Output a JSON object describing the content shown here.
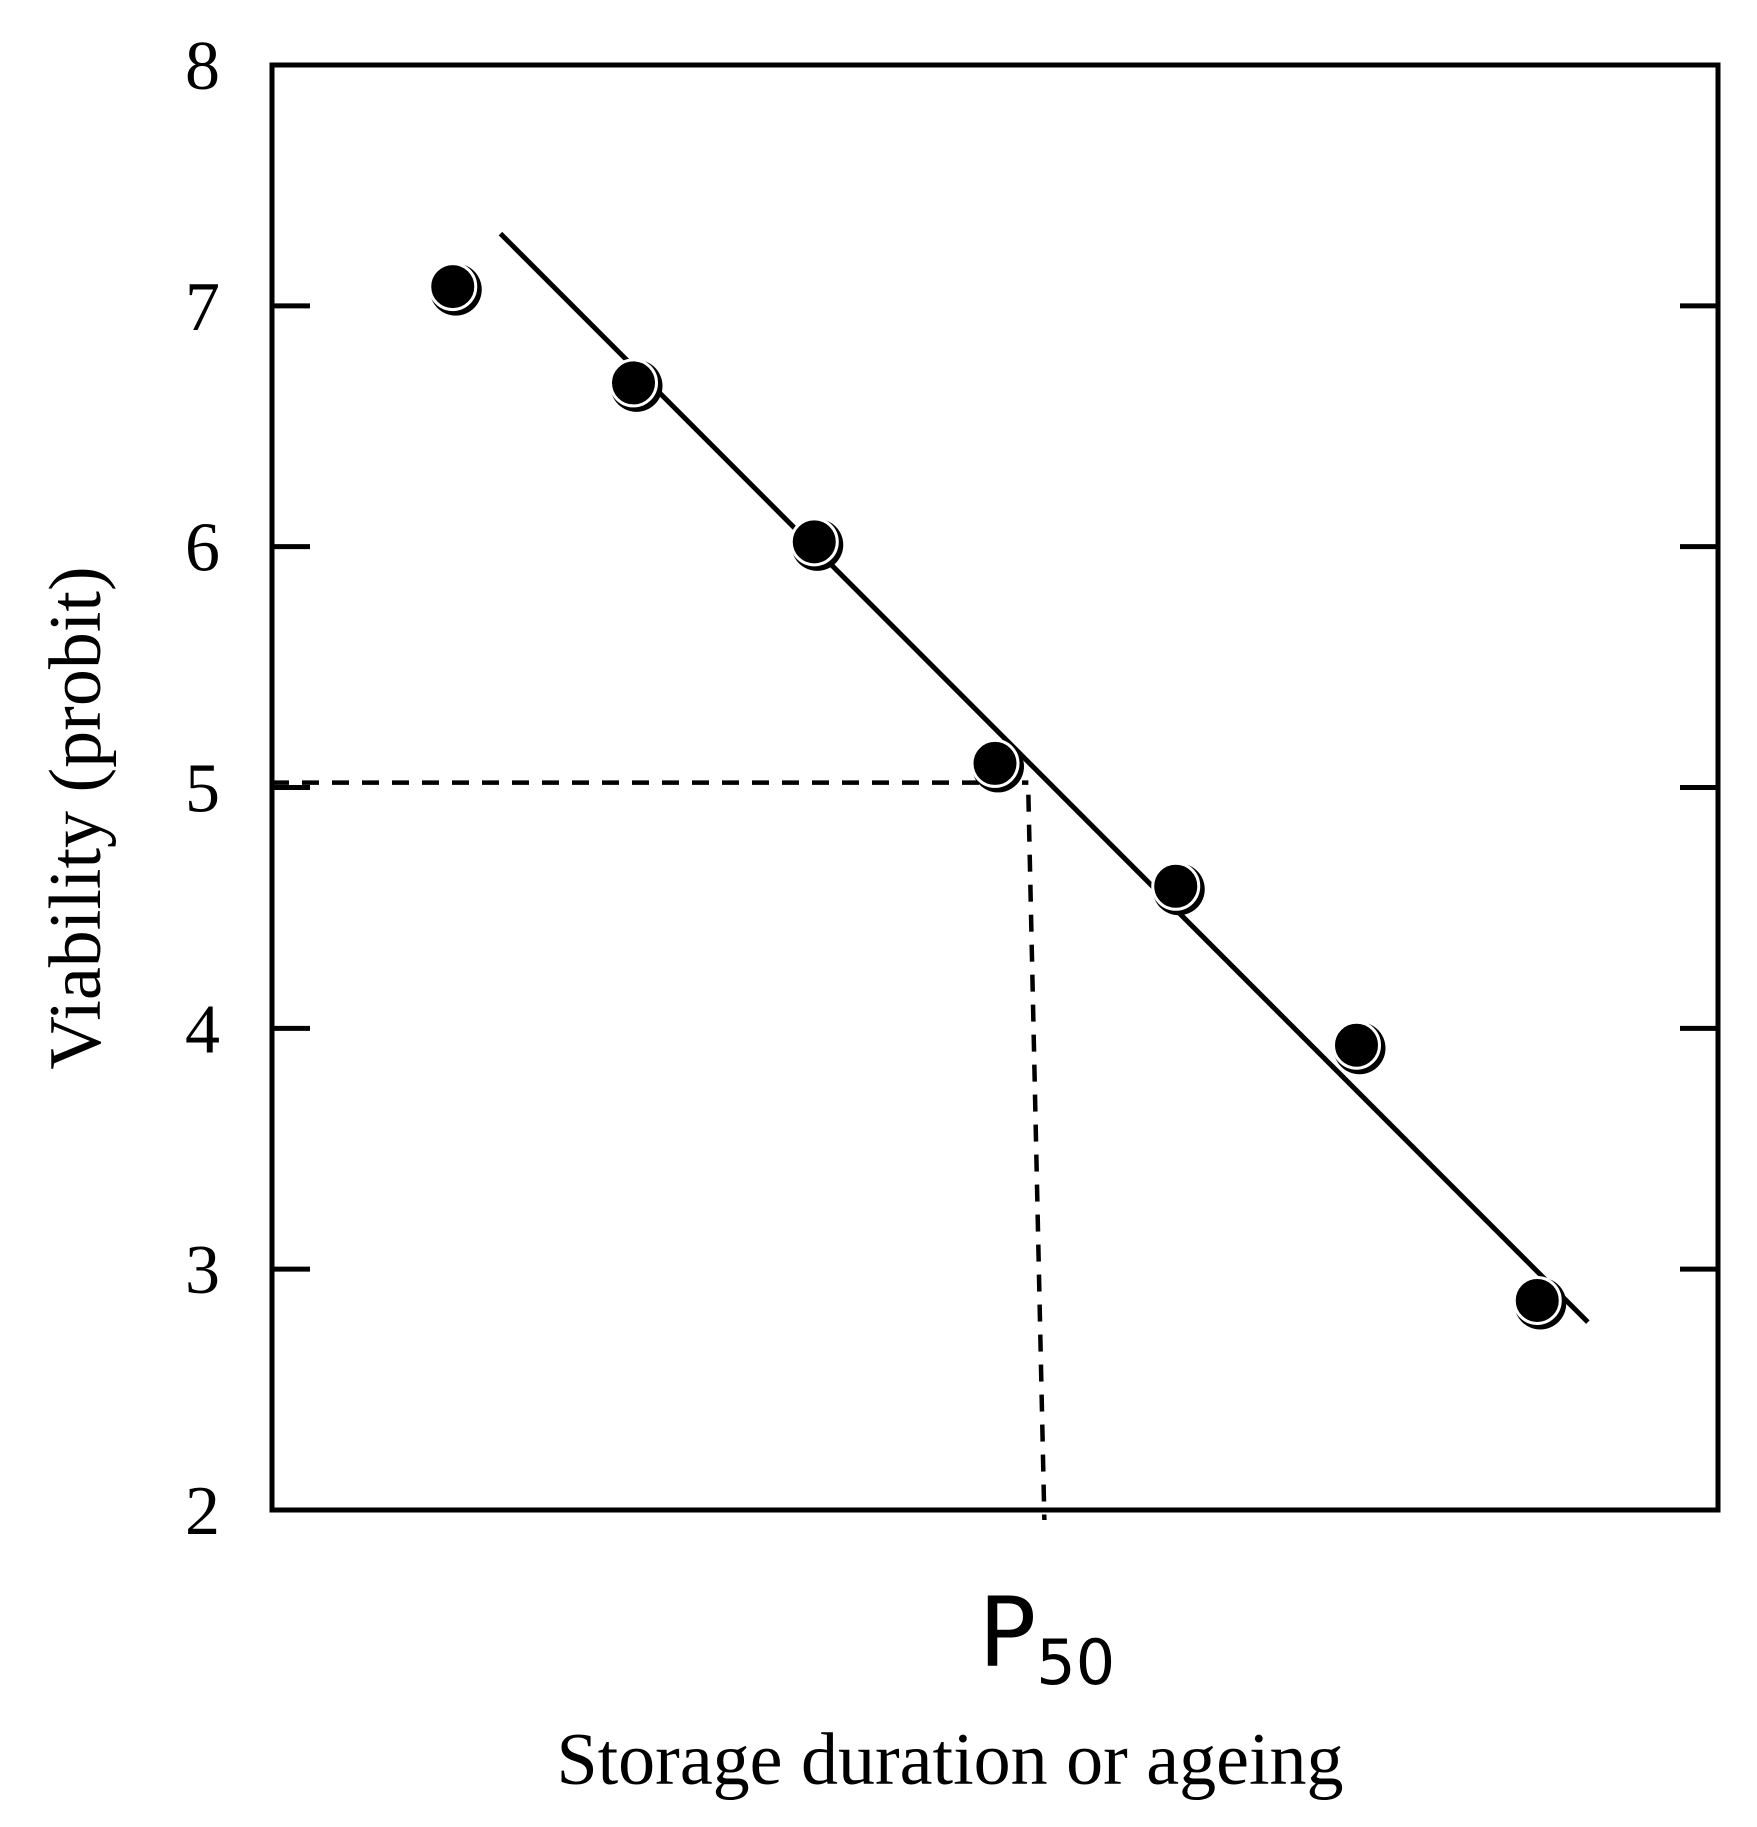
{
  "chart_data": {
    "type": "scatter",
    "title": "",
    "xlabel": "Storage duration or ageing",
    "ylabel": "Viability (probit)",
    "x_annotation": {
      "main": "P",
      "sub": "50",
      "x": 5.3
    },
    "xlim": [
      0,
      10
    ],
    "ylim": [
      2,
      8
    ],
    "yticks": [
      "2",
      "3",
      "4",
      "5",
      "6",
      "7",
      "8"
    ],
    "grid": false,
    "legend": "none",
    "points": [
      {
        "x": 1.25,
        "y": 7.08
      },
      {
        "x": 2.5,
        "y": 6.68
      },
      {
        "x": 3.75,
        "y": 6.02
      },
      {
        "x": 5.0,
        "y": 5.1
      },
      {
        "x": 6.25,
        "y": 4.59
      },
      {
        "x": 7.5,
        "y": 3.93
      },
      {
        "x": 8.75,
        "y": 2.87
      }
    ],
    "fit_line": [
      {
        "x": 1.58,
        "y": 7.3
      },
      {
        "x": 9.1,
        "y": 2.78
      }
    ],
    "reference_lines": {
      "y_level": 5.02,
      "x_at_y_level": 5.3
    },
    "colors": {
      "ink": "#000000",
      "background": "#ffffff"
    }
  }
}
